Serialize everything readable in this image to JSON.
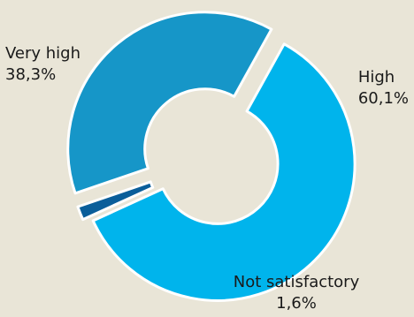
{
  "chart_data": {
    "type": "pie",
    "title": "",
    "style": "donut-exploded",
    "categories": [
      "High",
      "Not satisfactory",
      "Very high"
    ],
    "values": [
      60.1,
      1.6,
      38.3
    ],
    "value_labels": [
      "60,1%",
      "1,6%",
      "38,3%"
    ],
    "colors": [
      "#00b4ec",
      "#0a5e9a",
      "#1696c8"
    ],
    "start_angle_deg": 29,
    "direction": "clockwise",
    "legend": "none"
  }
}
